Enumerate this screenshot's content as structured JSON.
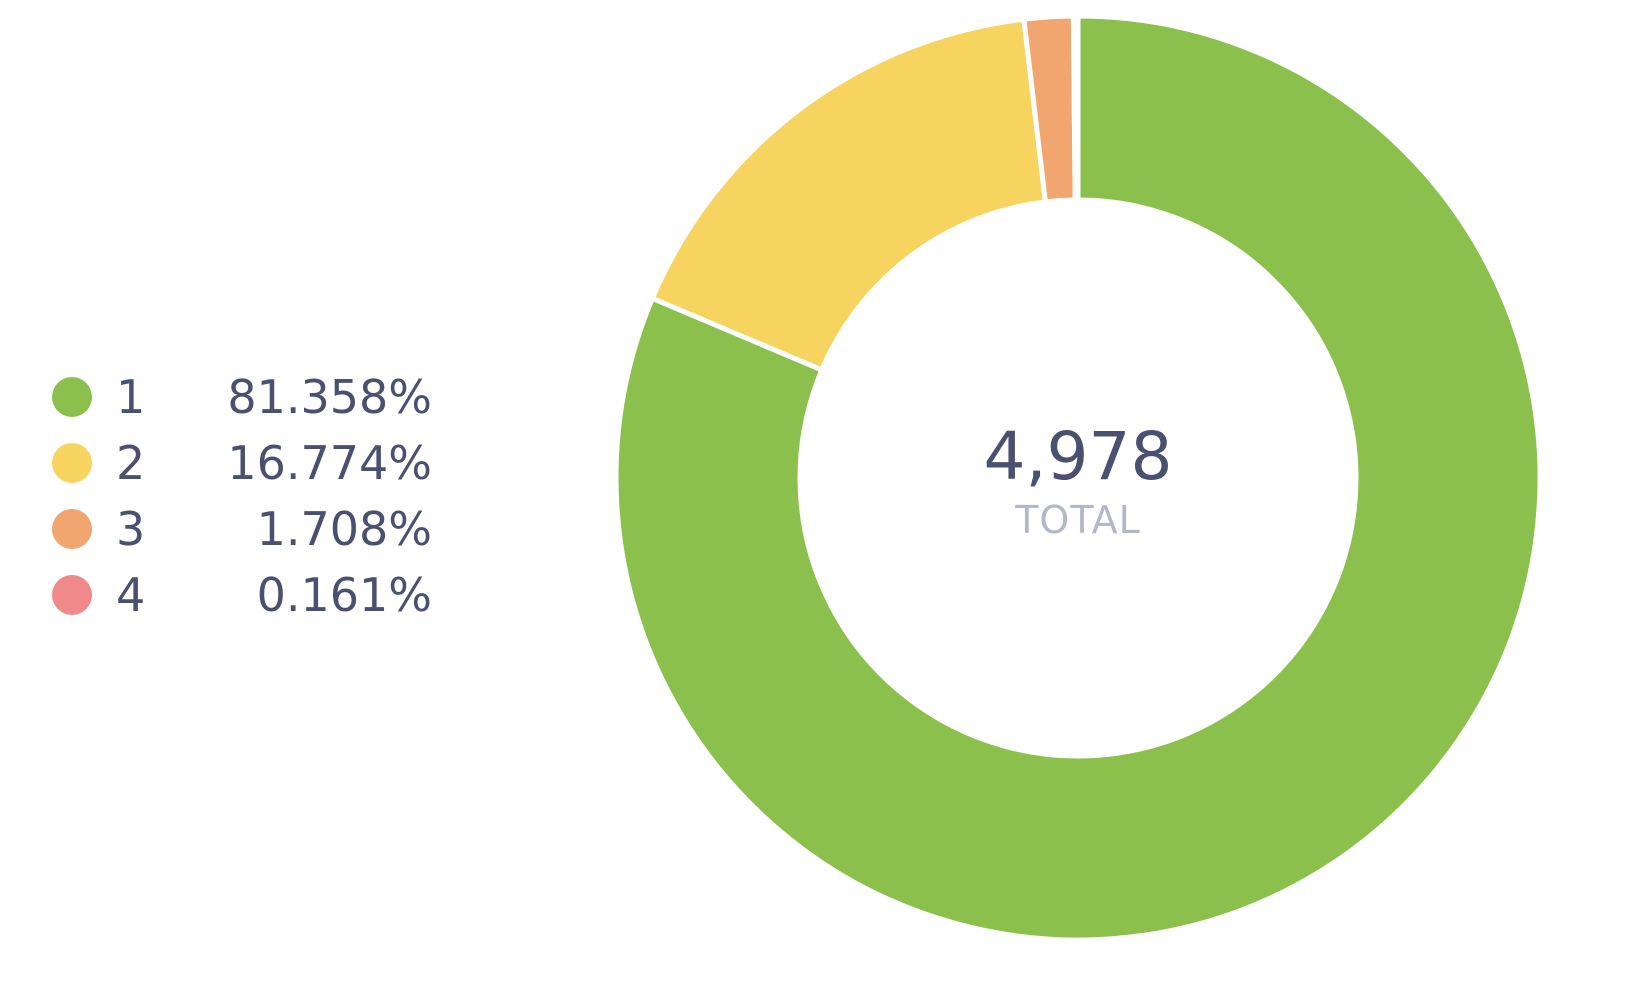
{
  "chart_data": {
    "type": "pie",
    "variant": "donut",
    "categories": [
      "1",
      "2",
      "3",
      "4"
    ],
    "values": [
      81.358,
      16.774,
      1.708,
      0.161
    ],
    "value_labels": [
      "81.358%",
      "16.774%",
      "1.708%",
      "0.161%"
    ],
    "colors": [
      "#8bc04d",
      "#f7d35f",
      "#f1a66f",
      "#f08a8a"
    ],
    "total": "4,978",
    "total_label": "TOTAL",
    "legend_position": "left"
  }
}
